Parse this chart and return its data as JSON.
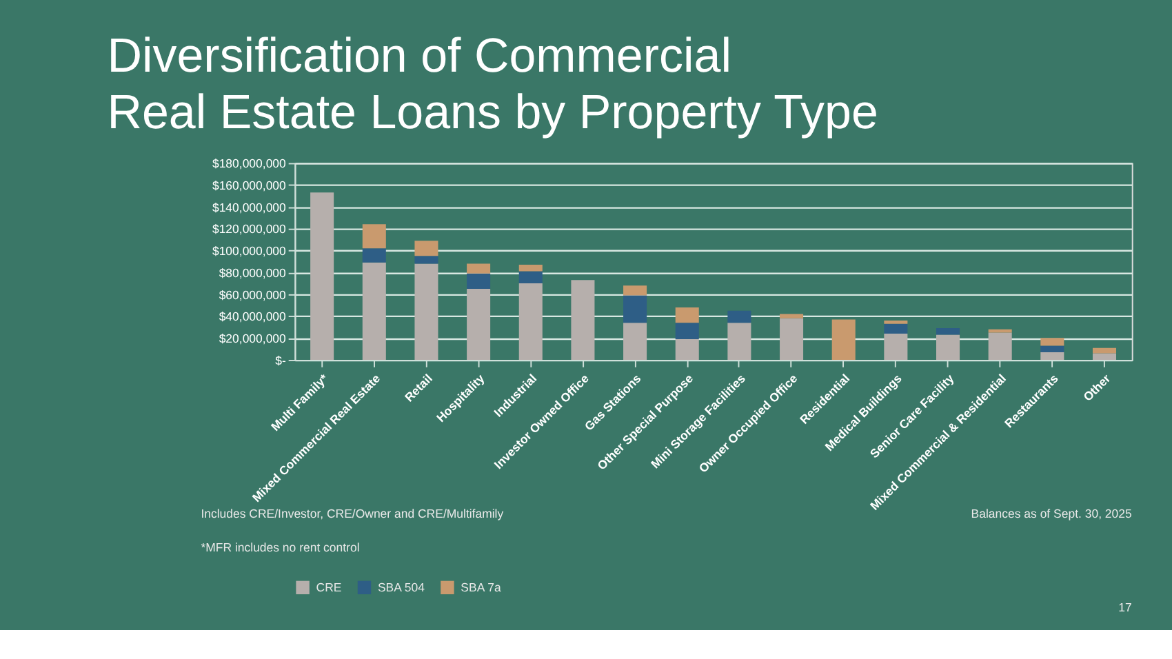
{
  "chart_data": {
    "type": "bar",
    "stacked": true,
    "title": "Diversification of Commercial\nReal Estate Loans by Property Type",
    "categories": [
      "Multi Family*",
      "Mixed Commercial Real Estate",
      "Retail",
      "Hospitality",
      "Industrial",
      "Investor Owned Office",
      "Gas Stations",
      "Other Special Purpose",
      "Mini Storage Facilities",
      "Owner Occupied Office",
      "Residential",
      "Medical Buildings",
      "Senior Care Facility",
      "Mixed Commercial & Residential",
      "Restaurants",
      "Other"
    ],
    "series": [
      {
        "name": "CRE",
        "color": "#b6afac",
        "values": [
          153000000,
          89000000,
          88000000,
          65000000,
          70000000,
          73000000,
          34000000,
          19000000,
          34000000,
          38000000,
          null,
          24000000,
          23000000,
          25000000,
          7000000,
          6000000
        ]
      },
      {
        "name": "SBA 504",
        "color": "#2e5e86",
        "values": [
          null,
          13000000,
          7000000,
          14000000,
          11000000,
          null,
          25000000,
          15000000,
          11000000,
          null,
          null,
          9000000,
          6000000,
          null,
          6000000,
          null
        ]
      },
      {
        "name": "SBA 7a",
        "color": "#c99a6e",
        "values": [
          null,
          22000000,
          14000000,
          9000000,
          6000000,
          null,
          9000000,
          14000000,
          null,
          4000000,
          37000000,
          3000000,
          null,
          3000000,
          7000000,
          5000000
        ]
      }
    ],
    "ylim": [
      0,
      180000000
    ],
    "yticks": [
      {
        "value": 0,
        "label": "$-"
      },
      {
        "value": 20000000,
        "label": "$20,000,000"
      },
      {
        "value": 40000000,
        "label": "$40,000,000"
      },
      {
        "value": 60000000,
        "label": "$60,000,000"
      },
      {
        "value": 80000000,
        "label": "$80,000,000"
      },
      {
        "value": 100000000,
        "label": "$100,000,000"
      },
      {
        "value": 120000000,
        "label": "$120,000,000"
      },
      {
        "value": 140000000,
        "label": "$140,000,000"
      },
      {
        "value": 160000000,
        "label": "$160,000,000"
      },
      {
        "value": 180000000,
        "label": "$180,000,000"
      }
    ],
    "grid": "y",
    "legend": "bottom",
    "annotations": [
      "Includes CRE/Investor, CRE/Owner and CRE/Multifamily",
      "*MFR includes no rent control",
      "Balances as of Sept. 30, 2025",
      "17"
    ]
  }
}
